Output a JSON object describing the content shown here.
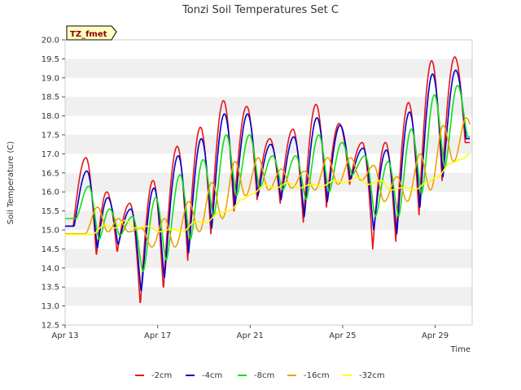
{
  "chart_data": {
    "type": "line",
    "title": "Tonzi Soil Temperatures Set C",
    "xlabel": "Time",
    "ylabel": "Soil Temperature (C)",
    "site_badge": "TZ_fmet",
    "xlim": [
      13,
      30.6
    ],
    "ylim": [
      12.5,
      20.0
    ],
    "yticks": [
      "12.5",
      "13.0",
      "13.5",
      "14.0",
      "14.5",
      "15.0",
      "15.5",
      "16.0",
      "16.5",
      "17.0",
      "17.5",
      "18.0",
      "18.5",
      "19.0",
      "19.5",
      "20.0"
    ],
    "xticks": [
      {
        "label": "Apr 13",
        "day": 13
      },
      {
        "label": "Apr 17",
        "day": 17
      },
      {
        "label": "Apr 21",
        "day": 21
      },
      {
        "label": "Apr 25",
        "day": 25
      },
      {
        "label": "Apr 29",
        "day": 29
      }
    ],
    "grid": "horizontal alternating bands",
    "legend_position": "bottom",
    "day_start": 13.0,
    "day_end": 30.5,
    "peak_times": [
      13.9,
      14.8,
      15.8,
      16.8,
      17.85,
      18.85,
      19.85,
      20.85,
      21.85,
      22.85,
      23.85,
      24.85,
      25.85,
      26.85,
      27.85,
      28.85,
      29.85
    ],
    "series": [
      {
        "name": "-2cm",
        "color": "#e8141a",
        "lag": 0.0,
        "sharp": 2.0,
        "maxs": [
          16.9,
          16.0,
          15.7,
          16.3,
          17.2,
          17.7,
          18.4,
          18.25,
          17.4,
          17.65,
          18.3,
          17.8,
          17.3,
          17.3,
          18.35,
          19.45,
          19.55
        ],
        "mins": [
          15.1,
          14.3,
          14.4,
          13.0,
          13.4,
          14.2,
          14.9,
          15.5,
          15.8,
          15.7,
          15.2,
          15.6,
          16.2,
          14.5,
          14.7,
          15.4,
          16.3,
          17.3,
          18.2
        ]
      },
      {
        "name": "-4cm",
        "color": "#0000c8",
        "lag": 0.04,
        "sharp": 1.8,
        "maxs": [
          16.55,
          15.85,
          15.55,
          16.1,
          16.95,
          17.4,
          18.05,
          18.05,
          17.25,
          17.45,
          17.95,
          17.75,
          17.15,
          17.1,
          18.1,
          19.1,
          19.2
        ],
        "mins": [
          15.1,
          14.5,
          14.6,
          13.35,
          13.7,
          14.4,
          15.05,
          15.6,
          15.9,
          15.8,
          15.35,
          15.75,
          16.3,
          15.0,
          14.9,
          15.6,
          16.4,
          17.4,
          18.3
        ]
      },
      {
        "name": "-8cm",
        "color": "#12e012",
        "lag": 0.12,
        "sharp": 1.3,
        "maxs": [
          16.15,
          15.55,
          15.35,
          15.85,
          16.45,
          16.85,
          17.5,
          17.5,
          16.95,
          16.95,
          17.5,
          17.3,
          16.95,
          16.8,
          17.65,
          18.55,
          18.8
        ],
        "mins": [
          15.3,
          14.75,
          14.85,
          13.9,
          14.2,
          14.75,
          15.35,
          15.9,
          16.1,
          16.05,
          15.8,
          16.0,
          16.45,
          15.35,
          15.35,
          15.95,
          16.65,
          17.45,
          18.4
        ]
      },
      {
        "name": "-16cm",
        "color": "#f0a000",
        "lag": 0.5,
        "sharp": 1.0,
        "maxs": [
          15.6,
          15.3,
          15.05,
          15.3,
          15.75,
          16.25,
          16.8,
          16.9,
          16.6,
          16.55,
          16.9,
          16.9,
          16.7,
          16.4,
          17.0,
          17.75,
          17.95
        ],
        "mins": [
          14.9,
          14.95,
          14.95,
          14.55,
          14.55,
          14.95,
          15.3,
          15.9,
          16.05,
          16.1,
          16.05,
          16.2,
          16.3,
          15.75,
          15.75,
          16.05,
          16.8,
          17.25,
          17.95
        ]
      },
      {
        "name": "-32cm",
        "color": "#ffff00",
        "lag": 0.8,
        "sharp": 1.0,
        "maxs": [
          15.12,
          15.25,
          15.1,
          15.02,
          15.22,
          15.45,
          15.8,
          16.18,
          16.25,
          16.2,
          16.3,
          16.38,
          16.3,
          16.12,
          16.25,
          16.75,
          17.05
        ],
        "mins": [
          14.88,
          15.05,
          15.05,
          14.95,
          14.95,
          15.2,
          15.5,
          15.95,
          16.1,
          16.1,
          16.15,
          16.25,
          16.2,
          16.05,
          16.05,
          16.4,
          16.85,
          16.95,
          17.05
        ]
      }
    ]
  }
}
